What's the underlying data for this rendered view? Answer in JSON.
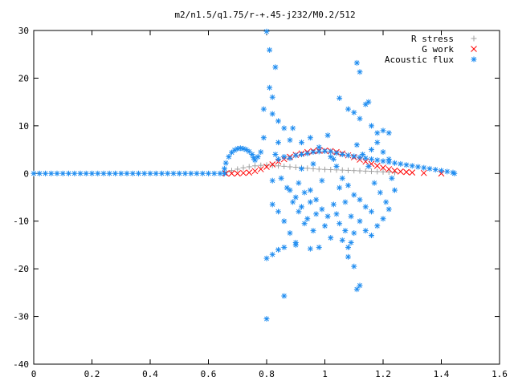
{
  "chart_data": {
    "type": "scatter",
    "title": "m2/n1.5/q1.75/r-+.45-j232/M0.2/512",
    "xlabel": "",
    "ylabel": "",
    "xlim": [
      0,
      1.6
    ],
    "ylim": [
      -40,
      30
    ],
    "x_ticks": [
      "0",
      "0.2",
      "0.4",
      "0.6",
      "0.8",
      "1",
      "1.2",
      "1.4",
      "1.6"
    ],
    "y_ticks": [
      "30",
      "20",
      "10",
      "0",
      "-10",
      "-20",
      "-30",
      "-40"
    ],
    "grid": false,
    "legend_position": "top-right",
    "series": [
      {
        "name": "R stress",
        "marker": "plus",
        "color": "#a0a0a0",
        "points": [
          [
            0.66,
            0.3
          ],
          [
            0.68,
            0.6
          ],
          [
            0.7,
            0.9
          ],
          [
            0.72,
            1.2
          ],
          [
            0.74,
            1.4
          ],
          [
            0.76,
            1.6
          ],
          [
            0.78,
            1.7
          ],
          [
            0.8,
            1.75
          ],
          [
            0.82,
            1.7
          ],
          [
            0.84,
            1.6
          ],
          [
            0.86,
            1.5
          ],
          [
            0.88,
            1.4
          ],
          [
            0.9,
            1.3
          ],
          [
            0.92,
            1.2
          ],
          [
            0.94,
            1.1
          ],
          [
            0.96,
            1.0
          ],
          [
            0.98,
            0.9
          ],
          [
            1.0,
            0.85
          ],
          [
            1.02,
            0.8
          ],
          [
            1.04,
            0.75
          ],
          [
            1.06,
            0.7
          ],
          [
            1.08,
            0.65
          ],
          [
            1.1,
            0.6
          ],
          [
            1.12,
            0.55
          ],
          [
            1.14,
            0.5
          ],
          [
            1.16,
            0.45
          ],
          [
            1.18,
            0.4
          ],
          [
            1.2,
            0.35
          ],
          [
            1.22,
            0.3
          ],
          [
            1.24,
            0.2
          ]
        ]
      },
      {
        "name": "G work",
        "marker": "cross",
        "color": "#ff0000",
        "points": [
          [
            0.66,
            0.0
          ],
          [
            0.68,
            0.0
          ],
          [
            0.7,
            0.0
          ],
          [
            0.72,
            0.1
          ],
          [
            0.74,
            0.2
          ],
          [
            0.76,
            0.5
          ],
          [
            0.78,
            0.9
          ],
          [
            0.8,
            1.4
          ],
          [
            0.82,
            1.9
          ],
          [
            0.84,
            2.5
          ],
          [
            0.86,
            3.0
          ],
          [
            0.88,
            3.5
          ],
          [
            0.9,
            3.9
          ],
          [
            0.92,
            4.2
          ],
          [
            0.94,
            4.5
          ],
          [
            0.96,
            4.7
          ],
          [
            0.98,
            4.8
          ],
          [
            1.0,
            4.8
          ],
          [
            1.02,
            4.7
          ],
          [
            1.04,
            4.5
          ],
          [
            1.06,
            4.2
          ],
          [
            1.08,
            3.8
          ],
          [
            1.1,
            3.4
          ],
          [
            1.12,
            2.9
          ],
          [
            1.14,
            2.5
          ],
          [
            1.16,
            2.0
          ],
          [
            1.18,
            1.6
          ],
          [
            1.2,
            1.2
          ],
          [
            1.22,
            0.9
          ],
          [
            1.24,
            0.6
          ],
          [
            1.26,
            0.4
          ],
          [
            1.28,
            0.3
          ],
          [
            1.3,
            0.2
          ],
          [
            1.34,
            0.1
          ],
          [
            1.4,
            0.0
          ]
        ]
      },
      {
        "name": "Acoustic flux",
        "marker": "star",
        "color": "#1e8cf0",
        "points": [
          [
            0.0,
            0.0
          ],
          [
            0.02,
            0.0
          ],
          [
            0.04,
            0.0
          ],
          [
            0.06,
            0.0
          ],
          [
            0.08,
            0.0
          ],
          [
            0.1,
            0.0
          ],
          [
            0.12,
            0.0
          ],
          [
            0.14,
            0.0
          ],
          [
            0.16,
            0.0
          ],
          [
            0.18,
            0.0
          ],
          [
            0.2,
            0.0
          ],
          [
            0.22,
            0.0
          ],
          [
            0.24,
            0.0
          ],
          [
            0.26,
            0.0
          ],
          [
            0.28,
            0.0
          ],
          [
            0.3,
            0.0
          ],
          [
            0.32,
            0.0
          ],
          [
            0.34,
            0.0
          ],
          [
            0.36,
            0.0
          ],
          [
            0.38,
            0.0
          ],
          [
            0.4,
            0.0
          ],
          [
            0.42,
            0.0
          ],
          [
            0.44,
            0.0
          ],
          [
            0.46,
            0.0
          ],
          [
            0.48,
            0.0
          ],
          [
            0.5,
            0.0
          ],
          [
            0.52,
            0.0
          ],
          [
            0.54,
            0.0
          ],
          [
            0.56,
            0.0
          ],
          [
            0.58,
            0.0
          ],
          [
            0.6,
            0.0
          ],
          [
            0.62,
            0.0
          ],
          [
            0.64,
            0.0
          ],
          [
            0.655,
            0.0
          ],
          [
            0.655,
            1.0
          ],
          [
            0.66,
            2.2
          ],
          [
            0.67,
            3.5
          ],
          [
            0.68,
            4.4
          ],
          [
            0.69,
            4.9
          ],
          [
            0.7,
            5.2
          ],
          [
            0.71,
            5.3
          ],
          [
            0.72,
            5.2
          ],
          [
            0.73,
            5.0
          ],
          [
            0.74,
            4.6
          ],
          [
            0.75,
            4.0
          ],
          [
            0.755,
            3.3
          ],
          [
            0.76,
            2.8
          ],
          [
            0.77,
            3.5
          ],
          [
            0.78,
            4.5
          ],
          [
            0.82,
            -1.5
          ],
          [
            0.84,
            3.0
          ],
          [
            0.86,
            3.5
          ],
          [
            0.88,
            3.2
          ],
          [
            0.9,
            3.8
          ],
          [
            0.92,
            4.0
          ],
          [
            0.94,
            4.2
          ],
          [
            0.96,
            4.5
          ],
          [
            0.98,
            4.6
          ],
          [
            1.0,
            4.7
          ],
          [
            1.02,
            4.6
          ],
          [
            1.04,
            4.3
          ],
          [
            1.06,
            4.0
          ],
          [
            1.08,
            3.8
          ],
          [
            1.1,
            3.6
          ],
          [
            1.12,
            3.4
          ],
          [
            1.14,
            3.2
          ],
          [
            1.16,
            3.0
          ],
          [
            1.18,
            2.8
          ],
          [
            1.2,
            2.6
          ],
          [
            1.22,
            2.4
          ],
          [
            1.24,
            2.2
          ],
          [
            1.26,
            2.0
          ],
          [
            1.28,
            1.8
          ],
          [
            1.3,
            1.6
          ],
          [
            1.32,
            1.4
          ],
          [
            1.34,
            1.2
          ],
          [
            1.36,
            1.0
          ],
          [
            1.38,
            0.8
          ],
          [
            1.4,
            0.6
          ],
          [
            1.42,
            0.4
          ],
          [
            1.44,
            0.2
          ],
          [
            1.445,
            0.0
          ],
          [
            0.8,
            29.8
          ],
          [
            0.81,
            25.9
          ],
          [
            0.83,
            22.3
          ],
          [
            0.81,
            18.0
          ],
          [
            0.82,
            16.0
          ],
          [
            0.79,
            13.5
          ],
          [
            0.82,
            12.5
          ],
          [
            0.84,
            11.0
          ],
          [
            0.86,
            9.5
          ],
          [
            0.79,
            7.5
          ],
          [
            0.84,
            6.5
          ],
          [
            0.88,
            7.0
          ],
          [
            0.83,
            4.0
          ],
          [
            0.85,
            -1.0
          ],
          [
            0.88,
            -3.5
          ],
          [
            0.9,
            -5.0
          ],
          [
            0.91,
            -2.0
          ],
          [
            0.93,
            -4.0
          ],
          [
            0.95,
            -6.0
          ],
          [
            0.97,
            -8.5
          ],
          [
            0.92,
            1.0
          ],
          [
            0.96,
            2.0
          ],
          [
            0.99,
            -1.5
          ],
          [
            1.01,
            8.0
          ],
          [
            1.03,
            3.0
          ],
          [
            1.05,
            -3.0
          ],
          [
            1.07,
            -6.0
          ],
          [
            1.09,
            -9.0
          ],
          [
            1.11,
            6.0
          ],
          [
            1.13,
            4.0
          ],
          [
            1.15,
            1.5
          ],
          [
            1.17,
            -2.0
          ],
          [
            1.19,
            -4.0
          ],
          [
            1.21,
            -6.0
          ],
          [
            1.23,
            -1.0
          ],
          [
            1.24,
            -3.5
          ],
          [
            0.82,
            -6.5
          ],
          [
            0.84,
            -8.0
          ],
          [
            0.86,
            -10.0
          ],
          [
            0.88,
            -12.5
          ],
          [
            0.9,
            -15.0
          ],
          [
            0.92,
            -7.0
          ],
          [
            0.94,
            -9.5
          ],
          [
            0.96,
            -12.0
          ],
          [
            0.98,
            -15.5
          ],
          [
            1.0,
            -11.0
          ],
          [
            1.02,
            -13.5
          ],
          [
            1.04,
            -8.5
          ],
          [
            1.06,
            -14.0
          ],
          [
            1.08,
            -15.5
          ],
          [
            1.1,
            -12.5
          ],
          [
            1.12,
            -10.0
          ],
          [
            1.14,
            -12.0
          ],
          [
            1.16,
            -13.0
          ],
          [
            1.18,
            -11.0
          ],
          [
            1.2,
            -9.5
          ],
          [
            1.22,
            -7.5
          ],
          [
            0.8,
            -17.8
          ],
          [
            0.82,
            -17.0
          ],
          [
            0.84,
            -16.0
          ],
          [
            0.86,
            -15.5
          ],
          [
            0.9,
            -14.5
          ],
          [
            0.95,
            -15.8
          ],
          [
            1.08,
            -17.5
          ],
          [
            1.1,
            -19.5
          ],
          [
            1.12,
            -23.5
          ],
          [
            1.11,
            -24.3
          ],
          [
            0.86,
            -25.7
          ],
          [
            0.8,
            -30.5
          ],
          [
            1.11,
            23.2
          ],
          [
            1.12,
            21.3
          ],
          [
            1.05,
            15.8
          ],
          [
            1.14,
            14.5
          ],
          [
            1.15,
            15.0
          ],
          [
            1.08,
            13.5
          ],
          [
            1.1,
            12.8
          ],
          [
            1.12,
            11.5
          ],
          [
            1.16,
            10.0
          ],
          [
            1.18,
            8.5
          ],
          [
            1.2,
            9.0
          ],
          [
            1.22,
            8.5
          ],
          [
            1.18,
            6.5
          ],
          [
            1.16,
            5.0
          ],
          [
            1.2,
            4.5
          ],
          [
            1.22,
            3.0
          ],
          [
            0.89,
            9.5
          ],
          [
            0.92,
            6.5
          ],
          [
            0.95,
            7.5
          ],
          [
            0.98,
            5.5
          ],
          [
            1.02,
            3.5
          ],
          [
            1.04,
            1.5
          ],
          [
            1.06,
            -1.0
          ],
          [
            1.08,
            -2.5
          ],
          [
            1.1,
            -4.5
          ],
          [
            1.12,
            -5.5
          ],
          [
            1.14,
            -7.0
          ],
          [
            1.16,
            -8.0
          ],
          [
            0.87,
            -3.0
          ],
          [
            0.89,
            -6.0
          ],
          [
            0.91,
            -8.0
          ],
          [
            0.93,
            -10.5
          ],
          [
            0.95,
            -3.5
          ],
          [
            0.97,
            -5.5
          ],
          [
            0.99,
            -7.5
          ],
          [
            1.01,
            -9.0
          ],
          [
            1.03,
            -6.5
          ],
          [
            1.05,
            -10.5
          ],
          [
            1.07,
            -12.0
          ],
          [
            1.09,
            -14.5
          ]
        ]
      }
    ]
  }
}
